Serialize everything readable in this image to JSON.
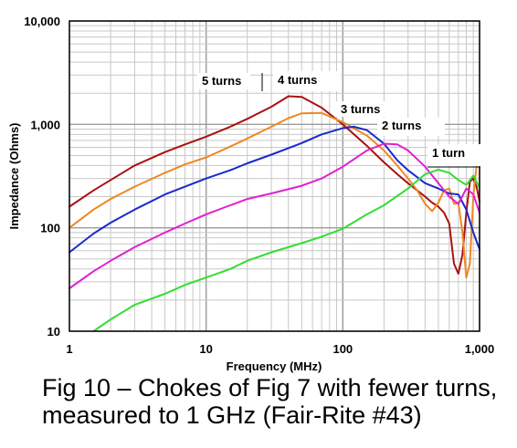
{
  "chart_data": {
    "type": "line",
    "xlabel": "Frequency (MHz)",
    "ylabel": "Impedance (Ohms)",
    "xscale": "log",
    "yscale": "log",
    "xlim": [
      1,
      1000
    ],
    "ylim": [
      10,
      10000
    ],
    "grid": true,
    "x_ticks": [
      "1",
      "10",
      "100",
      "1,000"
    ],
    "y_ticks": [
      "10",
      "100",
      "1,000",
      "10,000"
    ],
    "series": [
      {
        "name": "5 turns",
        "color": "#aa1111",
        "x": [
          1,
          1.5,
          2,
          3,
          5,
          7,
          10,
          15,
          20,
          30,
          40,
          50,
          70,
          100,
          150,
          200,
          250,
          300,
          350,
          400,
          450,
          500,
          550,
          600,
          650,
          700,
          750,
          800,
          850,
          900,
          950,
          1000
        ],
        "y": [
          160,
          230,
          290,
          400,
          540,
          640,
          760,
          950,
          1130,
          1480,
          1870,
          1840,
          1450,
          1000,
          620,
          430,
          330,
          270,
          230,
          200,
          175,
          160,
          140,
          110,
          45,
          36,
          55,
          140,
          280,
          300,
          250,
          180
        ]
      },
      {
        "name": "4 turns",
        "color": "#ee8822",
        "x": [
          1,
          1.5,
          2,
          3,
          5,
          7,
          10,
          15,
          20,
          30,
          40,
          50,
          70,
          100,
          150,
          200,
          250,
          300,
          350,
          400,
          450,
          500,
          550,
          600,
          650,
          700,
          750,
          800,
          850,
          900,
          950,
          1000
        ],
        "y": [
          100,
          150,
          190,
          250,
          340,
          410,
          480,
          610,
          730,
          950,
          1150,
          1280,
          1290,
          1050,
          780,
          560,
          400,
          300,
          230,
          170,
          145,
          175,
          230,
          240,
          170,
          175,
          90,
          33,
          45,
          200,
          400,
          520
        ]
      },
      {
        "name": "3 turns",
        "color": "#1a2acc",
        "x": [
          1,
          1.5,
          2,
          3,
          5,
          7,
          10,
          15,
          20,
          30,
          50,
          70,
          100,
          120,
          150,
          200,
          250,
          300,
          400,
          500,
          600,
          700,
          800,
          900,
          1000
        ],
        "y": [
          58,
          88,
          112,
          150,
          210,
          250,
          300,
          360,
          420,
          510,
          660,
          800,
          920,
          950,
          880,
          650,
          450,
          360,
          270,
          240,
          215,
          210,
          150,
          90,
          62
        ]
      },
      {
        "name": "2 turns",
        "color": "#e020d0",
        "x": [
          1,
          1.5,
          2,
          3,
          5,
          7,
          10,
          15,
          20,
          30,
          50,
          70,
          100,
          150,
          200,
          250,
          300,
          400,
          500,
          600,
          700,
          800,
          900,
          1000
        ],
        "y": [
          26,
          38,
          48,
          65,
          90,
          110,
          135,
          165,
          190,
          215,
          255,
          300,
          390,
          560,
          650,
          640,
          560,
          390,
          270,
          200,
          170,
          240,
          210,
          140
        ]
      },
      {
        "name": "1 turn",
        "color": "#33dd33",
        "x": [
          1.5,
          2,
          3,
          5,
          7,
          10,
          15,
          20,
          30,
          50,
          70,
          100,
          150,
          200,
          300,
          400,
          500,
          600,
          700,
          800,
          900,
          1000
        ],
        "y": [
          10,
          13,
          18,
          23,
          28,
          33,
          40,
          48,
          58,
          71,
          82,
          98,
          135,
          165,
          240,
          330,
          365,
          340,
          290,
          260,
          320,
          245
        ]
      }
    ]
  },
  "labels": {
    "turns5": "5 turns",
    "turns4": "4 turns",
    "turns3": "3 turns",
    "turns2": "2 turns",
    "turns1": "1 turn"
  },
  "caption": {
    "line1": "Fig 10 – Chokes of Fig 7 with fewer turns,",
    "line2": "measured to 1 GHz (Fair-Rite #43)"
  }
}
